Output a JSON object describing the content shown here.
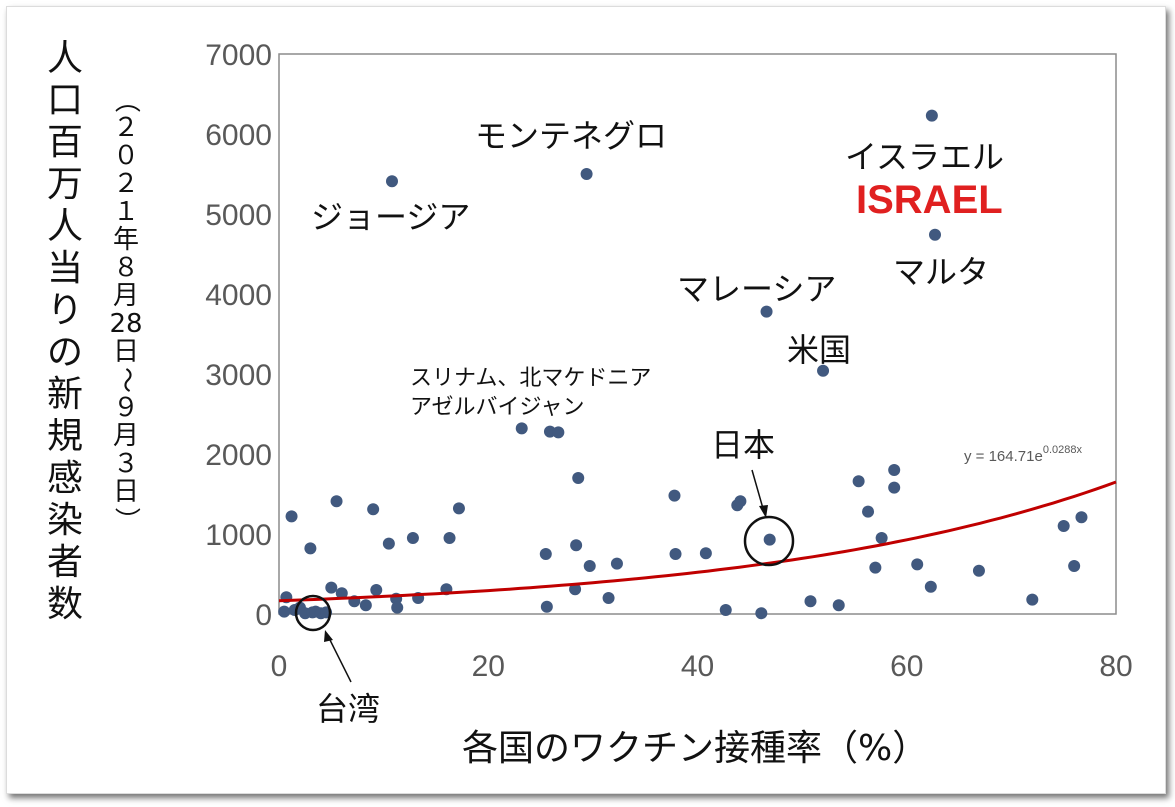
{
  "chart_data": {
    "type": "scatter",
    "xlabel": "各国のワクチン接種率（%）",
    "ylabel": "人口百万人当りの新規感染者数",
    "ylabel_sub": "（２０２１年８月28日～９月３日）",
    "xlim": [
      0,
      80
    ],
    "ylim": [
      0,
      7000
    ],
    "x_ticks": [
      "0",
      "20",
      "40",
      "60",
      "80"
    ],
    "y_ticks": [
      "0",
      "1000",
      "2000",
      "3000",
      "4000",
      "5000",
      "6000",
      "7000"
    ],
    "grid": false,
    "points": [
      [
        0.5,
        30
      ],
      [
        0.7,
        210
      ],
      [
        1.2,
        1220
      ],
      [
        1.5,
        50
      ],
      [
        2,
        80
      ],
      [
        2.5,
        10
      ],
      [
        3,
        820
      ],
      [
        3.2,
        20
      ],
      [
        3.5,
        30
      ],
      [
        4,
        10
      ],
      [
        4.5,
        20
      ],
      [
        5,
        330
      ],
      [
        5.5,
        1410
      ],
      [
        6,
        260
      ],
      [
        7.2,
        160
      ],
      [
        8.3,
        110
      ],
      [
        9,
        1310
      ],
      [
        9.3,
        300
      ],
      [
        10.5,
        880
      ],
      [
        10.8,
        5410
      ],
      [
        11.2,
        190
      ],
      [
        11.3,
        80
      ],
      [
        12.8,
        950
      ],
      [
        13.3,
        200
      ],
      [
        16,
        310
      ],
      [
        16.3,
        950
      ],
      [
        17.2,
        1320
      ],
      [
        23.2,
        2320
      ],
      [
        25.5,
        750
      ],
      [
        25.6,
        90
      ],
      [
        25.9,
        2280
      ],
      [
        26.7,
        2270
      ],
      [
        28.3,
        310
      ],
      [
        28.4,
        860
      ],
      [
        28.6,
        1700
      ],
      [
        29.4,
        5500
      ],
      [
        29.7,
        600
      ],
      [
        31.5,
        200
      ],
      [
        32.3,
        630
      ],
      [
        37.8,
        1480
      ],
      [
        37.9,
        750
      ],
      [
        40.8,
        760
      ],
      [
        42.7,
        50
      ],
      [
        43.8,
        1360
      ],
      [
        44.1,
        1410
      ],
      [
        46.1,
        10
      ],
      [
        46.6,
        3780
      ],
      [
        46.9,
        930
      ],
      [
        50.8,
        160
      ],
      [
        52,
        3040
      ],
      [
        53.5,
        110
      ],
      [
        55.4,
        1660
      ],
      [
        56.3,
        1280
      ],
      [
        57,
        580
      ],
      [
        57.6,
        950
      ],
      [
        58.8,
        1800
      ],
      [
        58.8,
        1580
      ],
      [
        61,
        620
      ],
      [
        62.3,
        340
      ],
      [
        62.4,
        6230
      ],
      [
        62.7,
        4740
      ],
      [
        66.9,
        540
      ],
      [
        72,
        180
      ],
      [
        75,
        1100
      ],
      [
        76,
        600
      ],
      [
        76.7,
        1210
      ]
    ],
    "trendline": {
      "a": 164.71,
      "b": 0.0288,
      "x_range": [
        0,
        80
      ],
      "color": "#c00000"
    },
    "point_color": "#41597f"
  },
  "equation": {
    "prefix": "y = 164.71e",
    "exponent": "0.0288x"
  },
  "annotations": {
    "montenegro": "モンテネグロ",
    "georgia": "ジョージア",
    "israel_jp": "イスラエル",
    "israel_en": "ISRAEL",
    "malta": "マルタ",
    "malaysia": "マレーシア",
    "usa": "米国",
    "suriname_line1": "スリナム、北マケドニア",
    "suriname_line2": "アゼルバイジャン",
    "japan": "日本",
    "taiwan": "台湾"
  },
  "colors": {
    "israel": "#e02020",
    "trend": "#c00000",
    "points": "#41597f"
  }
}
